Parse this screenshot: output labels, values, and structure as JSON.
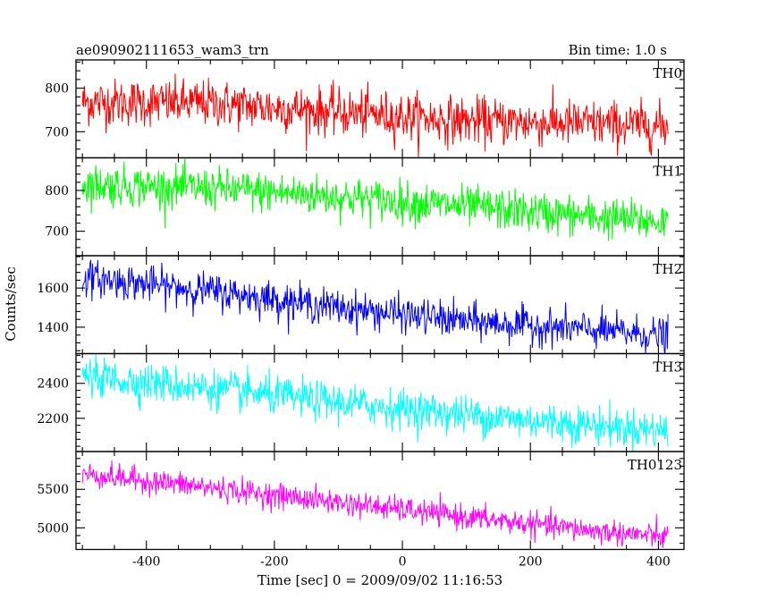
{
  "header": {
    "title": "ae090902111653_wam3_trn",
    "bin_time": "Bin time: 1.0 s"
  },
  "chart_data": {
    "type": "line",
    "xlabel": "Time [sec] 0 = 2009/09/02 11:16:53",
    "ylabel": "Counts/sec",
    "xlim": [
      -510,
      440
    ],
    "xticks": [
      -400,
      -200,
      0,
      200,
      400
    ],
    "x_start": -500,
    "x_end": 415,
    "x_step": 1,
    "grid": false,
    "panels": [
      {
        "name": "TH0",
        "color": "#ff0000",
        "ylim": [
          640,
          865
        ],
        "yticks": [
          700,
          800
        ],
        "trend": [
          {
            "x": -500,
            "y": 768
          },
          {
            "x": -300,
            "y": 765
          },
          {
            "x": -100,
            "y": 745
          },
          {
            "x": 100,
            "y": 725
          },
          {
            "x": 300,
            "y": 718
          },
          {
            "x": 415,
            "y": 712
          }
        ],
        "noise_sd": 27
      },
      {
        "name": "TH1",
        "color": "#00ff00",
        "ylim": [
          640,
          880
        ],
        "yticks": [
          700,
          800
        ],
        "trend": [
          {
            "x": -500,
            "y": 815
          },
          {
            "x": -300,
            "y": 805
          },
          {
            "x": -100,
            "y": 785
          },
          {
            "x": 100,
            "y": 760
          },
          {
            "x": 300,
            "y": 735
          },
          {
            "x": 415,
            "y": 722
          }
        ],
        "noise_sd": 25
      },
      {
        "name": "TH2",
        "color": "#0000ff",
        "ylim": [
          1265,
          1765
        ],
        "yticks": [
          1400,
          1600
        ],
        "trend": [
          {
            "x": -500,
            "y": 1655
          },
          {
            "x": -300,
            "y": 1585
          },
          {
            "x": -100,
            "y": 1500
          },
          {
            "x": 100,
            "y": 1430
          },
          {
            "x": 300,
            "y": 1385
          },
          {
            "x": 415,
            "y": 1355
          }
        ],
        "noise_sd": 45
      },
      {
        "name": "TH3",
        "color": "#00ffff",
        "ylim": [
          2010,
          2570
        ],
        "yticks": [
          2200,
          2400
        ],
        "trend": [
          {
            "x": -500,
            "y": 2440
          },
          {
            "x": -300,
            "y": 2370
          },
          {
            "x": -100,
            "y": 2290
          },
          {
            "x": 100,
            "y": 2220
          },
          {
            "x": 300,
            "y": 2160
          },
          {
            "x": 415,
            "y": 2130
          }
        ],
        "noise_sd": 55
      },
      {
        "name": "TH0123",
        "color": "#ff00ff",
        "ylim": [
          4720,
          5990
        ],
        "yticks": [
          5000,
          5500
        ],
        "trend": [
          {
            "x": -500,
            "y": 5700
          },
          {
            "x": -300,
            "y": 5520
          },
          {
            "x": -100,
            "y": 5330
          },
          {
            "x": 100,
            "y": 5140
          },
          {
            "x": 300,
            "y": 4960
          },
          {
            "x": 415,
            "y": 4880
          }
        ],
        "noise_sd": 80
      }
    ]
  }
}
